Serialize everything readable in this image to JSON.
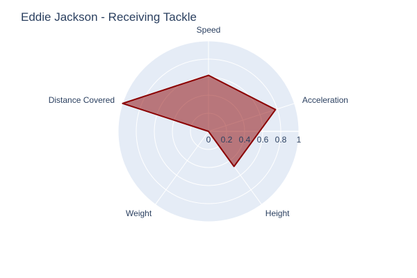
{
  "chart_data": {
    "type": "radar",
    "title": "Eddie Jackson - Receiving Tackle",
    "categories": [
      "Speed",
      "Acceleration",
      "Height",
      "Weight",
      "Distance Covered"
    ],
    "series": [
      {
        "values": [
          0.62,
          0.78,
          0.48,
          0.0,
          1.0
        ]
      }
    ],
    "radial_range": [
      0,
      1
    ],
    "radial_ticks": [
      "0",
      "0.2",
      "0.4",
      "0.6",
      "0.8",
      "1"
    ],
    "grid": true,
    "colors": {
      "polar_bg": "#e5ecf6",
      "grid": "#ffffff",
      "series_line": "#8b0000",
      "series_fill": "rgba(139,0,0,0.5)",
      "text": "#2a3f5f"
    }
  }
}
